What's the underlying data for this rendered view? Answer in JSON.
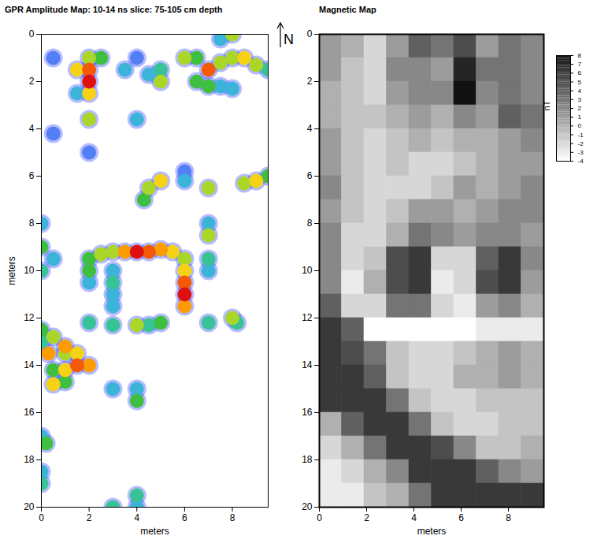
{
  "chart_data": [
    {
      "type": "heatmap",
      "title": "GPR Amplitude Map:  10-14 ns slice: 75-105 cm depth",
      "xlabel": "meters",
      "ylabel": "meters",
      "xlim": [
        0,
        9.5
      ],
      "ylim": [
        0,
        20
      ],
      "xticks": [
        0,
        2,
        4,
        6,
        8
      ],
      "yticks": [
        0,
        2,
        4,
        6,
        8,
        10,
        12,
        14,
        16,
        18,
        20
      ],
      "zlim": [
        0,
        10
      ],
      "cells": [
        [
          1.5,
          1.5,
          7
        ],
        [
          1.5,
          2.5,
          3
        ],
        [
          0.5,
          1,
          2
        ],
        [
          2,
          1.5,
          9
        ],
        [
          2,
          2,
          10
        ],
        [
          2,
          1,
          6
        ],
        [
          2,
          2.5,
          7
        ],
        [
          2.5,
          1,
          5
        ],
        [
          3.5,
          1.5,
          3
        ],
        [
          4.5,
          1.7,
          3
        ],
        [
          4,
          1,
          2
        ],
        [
          5,
          2,
          6
        ],
        [
          5,
          1.5,
          4
        ],
        [
          6,
          1,
          6
        ],
        [
          6.5,
          1,
          5
        ],
        [
          7,
          1.5,
          9
        ],
        [
          7.5,
          1.2,
          6
        ],
        [
          8,
          1,
          6
        ],
        [
          8.5,
          1,
          7
        ],
        [
          9,
          1.3,
          6
        ],
        [
          9.5,
          1.5,
          4
        ],
        [
          6.5,
          2,
          5
        ],
        [
          7,
          2.2,
          5
        ],
        [
          7.5,
          2.2,
          3
        ],
        [
          8,
          2.3,
          3
        ],
        [
          8,
          0,
          6
        ],
        [
          7.5,
          0.2,
          3
        ],
        [
          2,
          3.6,
          6
        ],
        [
          4,
          3.6,
          3
        ],
        [
          2,
          5,
          2
        ],
        [
          0.5,
          4.2,
          2
        ],
        [
          4.5,
          6.5,
          6
        ],
        [
          5,
          6.2,
          7
        ],
        [
          4.3,
          7,
          5
        ],
        [
          6,
          6.2,
          3
        ],
        [
          7,
          6.5,
          6
        ],
        [
          8.5,
          6.3,
          6
        ],
        [
          9,
          6.2,
          7
        ],
        [
          9.5,
          6,
          5
        ],
        [
          6,
          5.8,
          2
        ],
        [
          7,
          8,
          3
        ],
        [
          7,
          8.5,
          6
        ],
        [
          7,
          9.5,
          4
        ],
        [
          7,
          10,
          3
        ],
        [
          0,
          8,
          3
        ],
        [
          0,
          9,
          5
        ],
        [
          0,
          10,
          4
        ],
        [
          0.5,
          9.5,
          3
        ],
        [
          2,
          9.5,
          5
        ],
        [
          2.5,
          9.3,
          6
        ],
        [
          3,
          9.2,
          6
        ],
        [
          3.5,
          9.2,
          8
        ],
        [
          4,
          9.2,
          10
        ],
        [
          4.5,
          9.2,
          9
        ],
        [
          5,
          9.1,
          8
        ],
        [
          5.5,
          9.2,
          7
        ],
        [
          6,
          9.5,
          6
        ],
        [
          6,
          10,
          7
        ],
        [
          6,
          10.5,
          9
        ],
        [
          6,
          11,
          10
        ],
        [
          6,
          11.5,
          8
        ],
        [
          2,
          10,
          5
        ],
        [
          2,
          10.5,
          3
        ],
        [
          3,
          10,
          3
        ],
        [
          3,
          10.5,
          4
        ],
        [
          3,
          11,
          3
        ],
        [
          3,
          11.5,
          3
        ],
        [
          3,
          12.3,
          4
        ],
        [
          2,
          12.2,
          4
        ],
        [
          4,
          12.3,
          6
        ],
        [
          4.5,
          12.3,
          4
        ],
        [
          5,
          12.2,
          5
        ],
        [
          7,
          12.2,
          4
        ],
        [
          8,
          12,
          6
        ],
        [
          8.2,
          12.2,
          4
        ],
        [
          0,
          12.5,
          5
        ],
        [
          0.5,
          12.8,
          6
        ],
        [
          0.3,
          13.5,
          8
        ],
        [
          1,
          13.2,
          8
        ],
        [
          1,
          13.5,
          6
        ],
        [
          1.5,
          13.5,
          7
        ],
        [
          1.5,
          14,
          9
        ],
        [
          2,
          14,
          8
        ],
        [
          1,
          14.2,
          7
        ],
        [
          0.5,
          14.2,
          5
        ],
        [
          0.5,
          14.8,
          7
        ],
        [
          1,
          14.7,
          5
        ],
        [
          0,
          13,
          4
        ],
        [
          3,
          15,
          3
        ],
        [
          4,
          15,
          3
        ],
        [
          4,
          15.5,
          5
        ],
        [
          0,
          17,
          3
        ],
        [
          0.2,
          17.3,
          5
        ],
        [
          0,
          18.5,
          3
        ],
        [
          0,
          19,
          4
        ],
        [
          3,
          20,
          4
        ],
        [
          4,
          19.5,
          4
        ],
        [
          4,
          20,
          3
        ]
      ]
    },
    {
      "type": "heatmap",
      "title": "Magnetic Map",
      "xlabel": "meters",
      "xlim": [
        0,
        9.5
      ],
      "ylim": [
        0,
        20
      ],
      "xticks": [
        0,
        2,
        4,
        6,
        8
      ],
      "yticks": [
        0,
        2,
        4,
        6,
        8,
        10,
        12,
        14,
        16,
        18,
        20
      ],
      "x": [
        0.475,
        1.425,
        2.375,
        3.325,
        4.275,
        5.225,
        6.175,
        7.125,
        8.075,
        9.025
      ],
      "y": [
        0.5,
        1.5,
        2.5,
        3.5,
        4.5,
        5.5,
        6.5,
        7.5,
        8.5,
        9.5,
        10.5,
        11.5,
        12.5,
        13.5,
        14.5,
        15.5,
        16.5,
        17.5,
        18.5,
        19.5
      ],
      "values": [
        [
          1,
          0,
          -2,
          1,
          4,
          3,
          5,
          1,
          3,
          2
        ],
        [
          1,
          -1,
          -2,
          2,
          2,
          1,
          7,
          3,
          3,
          2
        ],
        [
          0,
          -1,
          -2,
          1,
          2,
          2,
          8,
          2,
          3,
          2
        ],
        [
          0,
          -1,
          -1,
          0,
          1,
          0,
          2,
          1,
          4,
          3
        ],
        [
          1,
          -1,
          -2,
          -1,
          0,
          -1,
          0,
          0,
          1,
          2
        ],
        [
          1,
          -1,
          -2,
          -1,
          -2,
          -2,
          -1,
          0,
          1,
          1
        ],
        [
          2,
          -1,
          -2,
          -2,
          -2,
          -1,
          1,
          0,
          1,
          2
        ],
        [
          1,
          -1,
          -2,
          -1,
          1,
          1,
          0,
          1,
          2,
          2
        ],
        [
          2,
          -2,
          -2,
          0,
          3,
          2,
          1,
          2,
          2,
          1
        ],
        [
          2,
          -2,
          -1,
          5,
          6,
          -2,
          -2,
          4,
          6,
          2
        ],
        [
          2,
          -3,
          0,
          5,
          6,
          -3,
          -2,
          5,
          6,
          1
        ],
        [
          4,
          -2,
          -2,
          3,
          3,
          -2,
          -3,
          1,
          2,
          0
        ],
        [
          6,
          4,
          -4,
          -4,
          -4,
          -4,
          -4,
          -3,
          -3,
          -3
        ],
        [
          6,
          5,
          3,
          -1,
          -2,
          -2,
          -1,
          0,
          1,
          0
        ],
        [
          6,
          6,
          4,
          -1,
          -2,
          -2,
          0,
          0,
          1,
          0
        ],
        [
          6,
          6,
          6,
          3,
          -1,
          -2,
          -2,
          -1,
          -1,
          -1
        ],
        [
          0,
          4,
          6,
          6,
          3,
          -1,
          -2,
          -2,
          -1,
          -1
        ],
        [
          -2,
          0,
          3,
          6,
          6,
          5,
          2,
          -1,
          -1,
          0
        ],
        [
          -3,
          -2,
          0,
          2,
          6,
          6,
          6,
          4,
          2,
          1
        ],
        [
          -3,
          -3,
          -1,
          0,
          3,
          6,
          6,
          6,
          6,
          6
        ]
      ],
      "colorbar": {
        "label": "nT",
        "lim": [
          -4,
          8
        ],
        "ticks": [
          -4,
          -3,
          -2,
          -1,
          0,
          1,
          2,
          3,
          4,
          5,
          6,
          7,
          8
        ]
      }
    }
  ],
  "north_arrow": "N"
}
